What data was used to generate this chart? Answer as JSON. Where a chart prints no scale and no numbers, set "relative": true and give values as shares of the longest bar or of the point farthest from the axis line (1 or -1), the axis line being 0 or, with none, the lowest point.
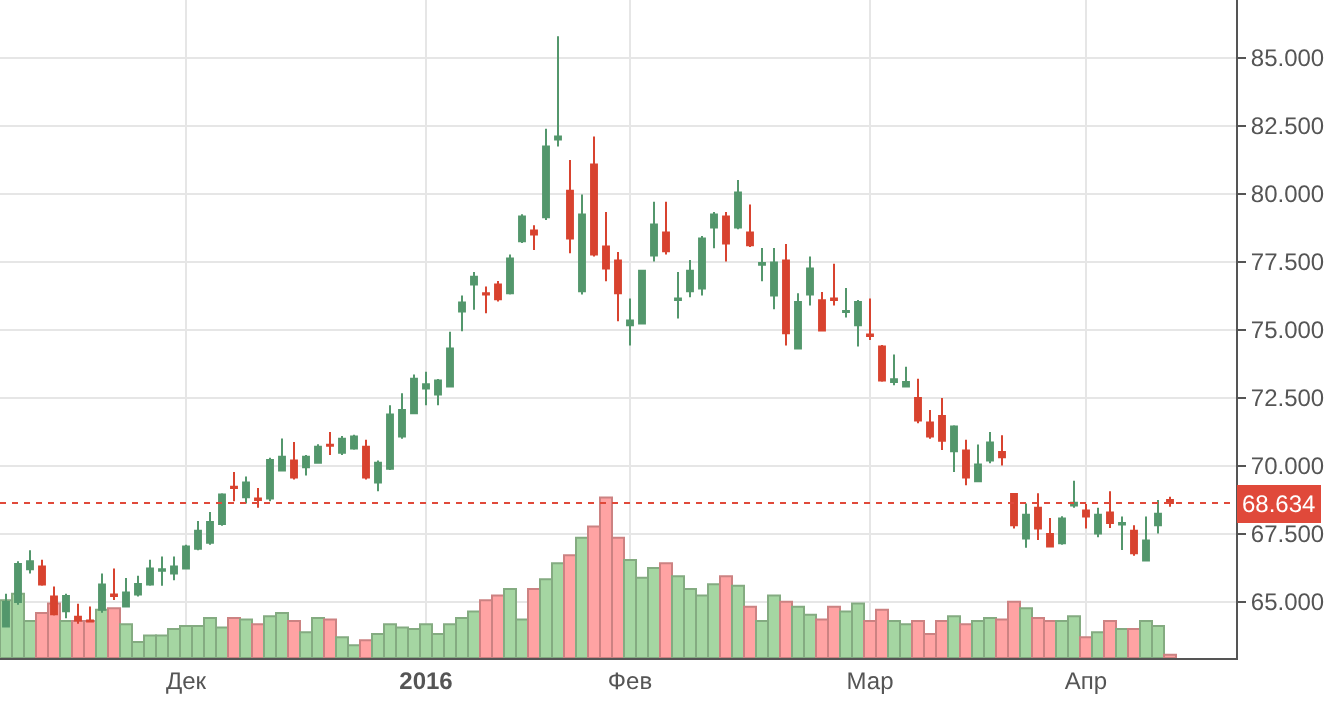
{
  "chart_data": [
    {
      "type": "candlestick",
      "categories": [
        null,
        null,
        null,
        null,
        null,
        null,
        null,
        null,
        null,
        null,
        null,
        null,
        null,
        null,
        null,
        "Дек",
        null,
        null,
        null,
        null,
        null,
        null,
        null,
        null,
        null,
        null,
        null,
        null,
        null,
        null,
        null,
        null,
        null,
        null,
        null,
        "2016",
        null,
        null,
        null,
        null,
        null,
        null,
        null,
        null,
        null,
        null,
        null,
        null,
        null,
        null,
        null,
        null,
        "Фев",
        null,
        null,
        null,
        null,
        null,
        null,
        null,
        null,
        null,
        null,
        null,
        null,
        null,
        null,
        null,
        null,
        null,
        null,
        null,
        "Мар",
        null,
        null,
        null,
        null,
        null,
        null,
        null,
        null,
        null,
        null,
        null,
        null,
        null,
        null,
        null,
        null,
        null,
        "Апр",
        null,
        null,
        null,
        null,
        null,
        null,
        null
      ],
      "ohlc": [
        [
          64.1,
          65.3,
          64.1,
          65.0
        ],
        [
          65.0,
          66.5,
          64.9,
          66.4
        ],
        [
          66.2,
          66.9,
          66.05,
          66.5
        ],
        [
          66.3,
          66.55,
          65.6,
          65.64
        ],
        [
          65.2,
          65.57,
          64.5,
          64.55
        ],
        [
          64.66,
          65.3,
          64.4,
          65.22
        ],
        [
          64.46,
          64.93,
          64.2,
          64.32
        ],
        [
          64.32,
          64.83,
          64.25,
          64.28
        ],
        [
          64.71,
          66.05,
          64.6,
          65.64
        ],
        [
          65.27,
          66.23,
          65.07,
          65.22
        ],
        [
          64.83,
          65.88,
          64.8,
          65.35
        ],
        [
          65.27,
          65.96,
          65.2,
          65.66
        ],
        [
          65.64,
          66.55,
          65.6,
          66.23
        ],
        [
          66.15,
          66.67,
          65.6,
          66.2
        ],
        [
          66.05,
          66.67,
          65.8,
          66.3
        ],
        [
          66.23,
          67.1,
          66.2,
          67.04
        ],
        [
          66.96,
          67.98,
          66.9,
          67.62
        ],
        [
          67.18,
          68.31,
          67.1,
          67.94
        ],
        [
          67.87,
          69.0,
          67.8,
          68.95
        ],
        [
          69.24,
          69.78,
          68.7,
          69.19
        ],
        [
          68.85,
          69.61,
          68.62,
          69.39
        ],
        [
          68.8,
          69.19,
          68.46,
          68.75
        ],
        [
          68.8,
          70.3,
          68.7,
          70.22
        ],
        [
          69.83,
          71.01,
          69.8,
          70.34
        ],
        [
          70.2,
          70.88,
          69.5,
          69.58
        ],
        [
          69.95,
          70.4,
          69.65,
          70.34
        ],
        [
          70.12,
          70.8,
          70.1,
          70.71
        ],
        [
          70.78,
          71.25,
          70.4,
          70.74
        ],
        [
          70.49,
          71.1,
          70.4,
          71.0
        ],
        [
          70.64,
          71.15,
          70.6,
          71.08
        ],
        [
          70.71,
          70.96,
          69.5,
          69.58
        ],
        [
          69.39,
          70.2,
          69.07,
          70.12
        ],
        [
          69.9,
          72.23,
          69.85,
          71.89
        ],
        [
          71.08,
          72.67,
          71.0,
          72.06
        ],
        [
          71.94,
          73.36,
          71.9,
          73.21
        ],
        [
          72.85,
          73.46,
          72.23,
          73.0
        ],
        [
          72.63,
          73.2,
          72.23,
          73.14
        ],
        [
          72.92,
          74.93,
          72.9,
          74.32
        ],
        [
          75.68,
          76.27,
          74.95,
          76.01
        ],
        [
          76.67,
          77.13,
          75.74,
          76.96
        ],
        [
          76.35,
          76.6,
          75.61,
          76.3
        ],
        [
          76.67,
          76.8,
          76.05,
          76.13
        ],
        [
          76.35,
          77.77,
          76.3,
          77.63
        ],
        [
          78.26,
          79.25,
          78.2,
          79.17
        ],
        [
          78.66,
          78.85,
          77.94,
          78.51
        ],
        [
          79.14,
          82.4,
          79.04,
          81.74
        ],
        [
          82.0,
          85.8,
          81.74,
          82.11
        ],
        [
          80.12,
          81.25,
          77.82,
          78.36
        ],
        [
          76.42,
          79.98,
          76.3,
          79.24
        ],
        [
          81.08,
          82.11,
          77.7,
          77.77
        ],
        [
          78.07,
          79.34,
          76.79,
          77.26
        ],
        [
          77.55,
          77.87,
          75.32,
          76.35
        ],
        [
          75.17,
          76.16,
          74.43,
          75.35
        ],
        [
          75.24,
          77.2,
          75.2,
          77.18
        ],
        [
          77.74,
          79.71,
          77.52,
          78.88
        ],
        [
          78.58,
          79.71,
          77.77,
          77.89
        ],
        [
          76.1,
          77.13,
          75.42,
          76.16
        ],
        [
          76.42,
          77.57,
          76.2,
          77.18
        ],
        [
          76.52,
          78.45,
          76.27,
          78.36
        ],
        [
          78.77,
          79.34,
          78.0,
          79.24
        ],
        [
          79.17,
          79.34,
          77.52,
          78.18
        ],
        [
          78.77,
          80.51,
          78.7,
          80.05
        ],
        [
          78.58,
          79.61,
          78.05,
          78.11
        ],
        [
          77.4,
          78.01,
          76.79,
          77.46
        ],
        [
          76.27,
          78.01,
          75.76,
          77.48
        ],
        [
          77.55,
          78.16,
          74.43,
          74.88
        ],
        [
          74.32,
          76.35,
          74.3,
          76.03
        ],
        [
          76.3,
          77.7,
          75.9,
          77.26
        ],
        [
          76.09,
          76.4,
          74.95,
          74.98
        ],
        [
          76.16,
          77.43,
          75.9,
          76.1
        ],
        [
          75.66,
          76.54,
          75.46,
          75.7
        ],
        [
          75.17,
          76.1,
          74.39,
          76.03
        ],
        [
          74.83,
          76.16,
          74.63,
          74.78
        ],
        [
          74.39,
          74.45,
          73.1,
          73.14
        ],
        [
          73.09,
          74.1,
          72.97,
          73.19
        ],
        [
          72.92,
          73.65,
          72.9,
          73.09
        ],
        [
          72.5,
          73.21,
          71.57,
          71.67
        ],
        [
          71.6,
          72.06,
          71.0,
          71.08
        ],
        [
          71.84,
          72.5,
          70.59,
          70.93
        ],
        [
          70.54,
          71.5,
          69.78,
          71.45
        ],
        [
          70.57,
          70.96,
          69.29,
          69.58
        ],
        [
          69.44,
          70.79,
          69.4,
          70.05
        ],
        [
          70.2,
          71.25,
          70.1,
          70.86
        ],
        [
          70.51,
          71.13,
          70.02,
          70.32
        ],
        [
          68.97,
          69.0,
          67.7,
          67.82
        ],
        [
          67.33,
          68.62,
          66.99,
          68.21
        ],
        [
          68.46,
          69.0,
          67.28,
          67.7
        ],
        [
          67.5,
          68.09,
          67.0,
          67.04
        ],
        [
          67.16,
          68.15,
          67.1,
          68.07
        ],
        [
          68.55,
          69.46,
          68.46,
          68.65
        ],
        [
          68.36,
          68.6,
          67.7,
          68.14
        ],
        [
          67.52,
          68.46,
          67.38,
          68.21
        ],
        [
          68.29,
          69.07,
          67.72,
          67.9
        ],
        [
          67.85,
          68.14,
          66.91,
          67.9
        ],
        [
          67.62,
          67.82,
          66.7,
          66.79
        ],
        [
          66.52,
          68.14,
          66.5,
          67.26
        ],
        [
          67.82,
          68.75,
          67.52,
          68.24
        ],
        [
          68.75,
          68.87,
          68.5,
          68.634
        ]
      ],
      "colors": [
        "#53976c",
        "#53976c",
        "#53976c",
        "#d8432f",
        "#d8432f",
        "#53976c",
        "#d8432f",
        "#d8432f",
        "#53976c",
        "#d8432f",
        "#53976c",
        "#53976c",
        "#53976c",
        "#53976c",
        "#53976c",
        "#53976c",
        "#53976c",
        "#53976c",
        "#53976c",
        "#d8432f",
        "#53976c",
        "#d8432f",
        "#53976c",
        "#53976c",
        "#d8432f",
        "#53976c",
        "#53976c",
        "#d8432f",
        "#53976c",
        "#53976c",
        "#d8432f",
        "#53976c",
        "#53976c",
        "#53976c",
        "#53976c",
        "#53976c",
        "#53976c",
        "#53976c",
        "#53976c",
        "#53976c",
        "#d8432f",
        "#d8432f",
        "#53976c",
        "#53976c",
        "#d8432f",
        "#53976c",
        "#53976c",
        "#d8432f",
        "#53976c",
        "#d8432f",
        "#d8432f",
        "#d8432f",
        "#53976c",
        "#53976c",
        "#53976c",
        "#d8432f",
        "#53976c",
        "#53976c",
        "#53976c",
        "#53976c",
        "#d8432f",
        "#53976c",
        "#d8432f",
        "#53976c",
        "#53976c",
        "#d8432f",
        "#53976c",
        "#53976c",
        "#d8432f",
        "#d8432f",
        "#53976c",
        "#53976c",
        "#d8432f",
        "#d8432f",
        "#53976c",
        "#53976c",
        "#d8432f",
        "#d8432f",
        "#d8432f",
        "#53976c",
        "#d8432f",
        "#53976c",
        "#53976c",
        "#d8432f",
        "#d8432f",
        "#53976c",
        "#d8432f",
        "#d8432f",
        "#53976c",
        "#53976c",
        "#d8432f",
        "#53976c",
        "#d8432f",
        "#53976c",
        "#d8432f",
        "#53976c",
        "#53976c",
        "#d8432f"
      ],
      "ylim": [
        62.94,
        87.13
      ],
      "yticks": [
        {
          "value": 65,
          "label": "65.000"
        },
        {
          "value": 67.5,
          "label": "67.500"
        },
        {
          "value": 70,
          "label": "70.000"
        },
        {
          "value": 72.5,
          "label": "72.500"
        },
        {
          "value": 75,
          "label": "75.000"
        },
        {
          "value": 77.5,
          "label": "77.500"
        },
        {
          "value": 80,
          "label": "80.000"
        },
        {
          "value": 82.5,
          "label": "82.500"
        },
        {
          "value": 85,
          "label": "85.000"
        }
      ],
      "ref_lines": [
        {
          "axis": "y",
          "value": 68.634,
          "label": "68.634",
          "color": "#e0493a",
          "line_style": "dotted"
        }
      ],
      "grid": true
    },
    {
      "type": "bar",
      "relative": true,
      "categories": [
        null,
        null,
        null,
        null,
        null,
        null,
        null,
        null,
        null,
        null,
        null,
        null,
        null,
        null,
        null,
        null,
        null,
        null,
        null,
        null,
        null,
        null,
        null,
        null,
        null,
        null,
        null,
        null,
        null,
        null,
        null,
        null,
        null,
        null,
        null,
        null,
        null,
        null,
        null,
        null,
        null,
        null,
        null,
        null,
        null,
        null,
        null,
        null,
        null,
        null,
        null,
        null,
        null,
        null,
        null,
        null,
        null,
        null,
        null,
        null,
        null,
        null,
        null,
        null,
        null,
        null,
        null,
        null,
        null,
        null,
        null,
        null,
        null,
        null,
        null,
        null,
        null,
        null,
        null,
        null,
        null,
        null,
        null,
        null,
        null,
        null,
        null,
        null,
        null,
        null,
        null,
        null,
        null,
        null,
        null,
        null,
        null,
        null
      ],
      "values": [
        0.36,
        0.4,
        0.23,
        0.28,
        0.34,
        0.23,
        0.23,
        0.23,
        0.3,
        0.31,
        0.21,
        0.1,
        0.14,
        0.14,
        0.18,
        0.2,
        0.2,
        0.25,
        0.19,
        0.25,
        0.24,
        0.21,
        0.26,
        0.28,
        0.23,
        0.16,
        0.25,
        0.24,
        0.13,
        0.08,
        0.11,
        0.15,
        0.21,
        0.19,
        0.18,
        0.21,
        0.15,
        0.21,
        0.25,
        0.29,
        0.36,
        0.39,
        0.43,
        0.24,
        0.43,
        0.49,
        0.59,
        0.64,
        0.75,
        0.82,
        1,
        0.75,
        0.61,
        0.5,
        0.56,
        0.59,
        0.51,
        0.43,
        0.39,
        0.46,
        0.51,
        0.45,
        0.32,
        0.23,
        0.39,
        0.35,
        0.32,
        0.27,
        0.24,
        0.32,
        0.29,
        0.34,
        0.23,
        0.3,
        0.23,
        0.21,
        0.23,
        0.15,
        0.23,
        0.26,
        0.21,
        0.23,
        0.25,
        0.24,
        0.35,
        0.31,
        0.25,
        0.23,
        0.23,
        0.26,
        0.13,
        0.16,
        0.23,
        0.18,
        0.18,
        0.23,
        0.2,
        0.02
      ],
      "colors": [
        "#a5d6a2",
        "#a5d6a2",
        "#a5d6a2",
        "#ffa3a3",
        "#ffa3a3",
        "#a5d6a2",
        "#ffa3a3",
        "#ffa3a3",
        "#a5d6a2",
        "#ffa3a3",
        "#a5d6a2",
        "#a5d6a2",
        "#a5d6a2",
        "#a5d6a2",
        "#a5d6a2",
        "#a5d6a2",
        "#a5d6a2",
        "#a5d6a2",
        "#a5d6a2",
        "#ffa3a3",
        "#a5d6a2",
        "#ffa3a3",
        "#a5d6a2",
        "#a5d6a2",
        "#ffa3a3",
        "#a5d6a2",
        "#a5d6a2",
        "#ffa3a3",
        "#a5d6a2",
        "#a5d6a2",
        "#ffa3a3",
        "#a5d6a2",
        "#a5d6a2",
        "#a5d6a2",
        "#a5d6a2",
        "#a5d6a2",
        "#a5d6a2",
        "#a5d6a2",
        "#a5d6a2",
        "#a5d6a2",
        "#ffa3a3",
        "#ffa3a3",
        "#a5d6a2",
        "#a5d6a2",
        "#ffa3a3",
        "#a5d6a2",
        "#a5d6a2",
        "#ffa3a3",
        "#a5d6a2",
        "#ffa3a3",
        "#ffa3a3",
        "#ffa3a3",
        "#a5d6a2",
        "#a5d6a2",
        "#a5d6a2",
        "#ffa3a3",
        "#a5d6a2",
        "#a5d6a2",
        "#a5d6a2",
        "#a5d6a2",
        "#ffa3a3",
        "#a5d6a2",
        "#ffa3a3",
        "#a5d6a2",
        "#a5d6a2",
        "#ffa3a3",
        "#a5d6a2",
        "#a5d6a2",
        "#ffa3a3",
        "#ffa3a3",
        "#a5d6a2",
        "#a5d6a2",
        "#ffa3a3",
        "#ffa3a3",
        "#a5d6a2",
        "#a5d6a2",
        "#ffa3a3",
        "#ffa3a3",
        "#ffa3a3",
        "#a5d6a2",
        "#ffa3a3",
        "#a5d6a2",
        "#a5d6a2",
        "#ffa3a3",
        "#ffa3a3",
        "#a5d6a2",
        "#ffa3a3",
        "#ffa3a3",
        "#a5d6a2",
        "#a5d6a2",
        "#ffa3a3",
        "#a5d6a2",
        "#ffa3a3",
        "#a5d6a2",
        "#ffa3a3",
        "#a5d6a2",
        "#a5d6a2",
        "#ffa3a3"
      ]
    }
  ]
}
